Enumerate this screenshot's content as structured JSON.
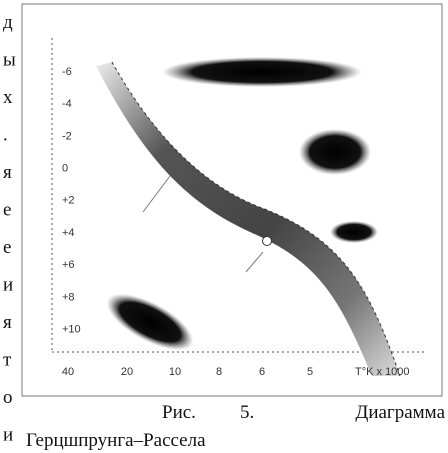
{
  "side_text": [
    "д",
    "ы",
    "х",
    ".",
    "я",
    "е",
    "е",
    "и",
    "я",
    "т",
    "о",
    "и"
  ],
  "figure": {
    "y_labels": [
      "-6",
      "-4",
      "-2",
      "0",
      "+2",
      "+4",
      "+6",
      "+8",
      "+10"
    ],
    "x_labels": [
      "40",
      "20",
      "10",
      "8",
      "6",
      "5"
    ],
    "x_axis_unit": "T°K x 1000"
  },
  "caption": {
    "line1": [
      "Рис.",
      "5.",
      "Диаграмма"
    ],
    "line2": "Герцшпрунга–Рассела"
  }
}
